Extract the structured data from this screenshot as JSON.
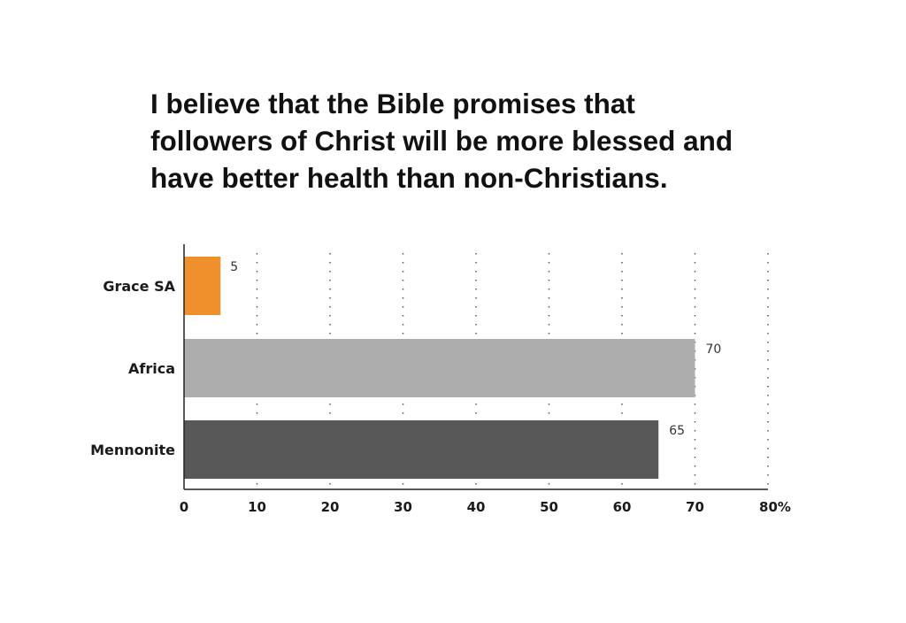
{
  "chart_data": {
    "type": "bar",
    "orientation": "horizontal",
    "title_lines": [
      "I believe that the Bible promises that",
      "followers of Christ will be more blessed and",
      "have better health than non-Christians."
    ],
    "categories": [
      "Grace SA",
      "Africa",
      "Mennonite"
    ],
    "values": [
      5,
      70,
      65
    ],
    "data_labels": [
      "5",
      "70",
      "65"
    ],
    "colors": [
      "#f0902c",
      "#adadad",
      "#585858"
    ],
    "xlim": [
      0,
      80
    ],
    "x_ticks": [
      0,
      10,
      20,
      30,
      40,
      50,
      60,
      70,
      80
    ],
    "x_tick_labels": [
      "0",
      "10",
      "20",
      "30",
      "40",
      "50",
      "60",
      "70",
      "80%"
    ],
    "grid": "vertical dotted",
    "legend": "none"
  }
}
